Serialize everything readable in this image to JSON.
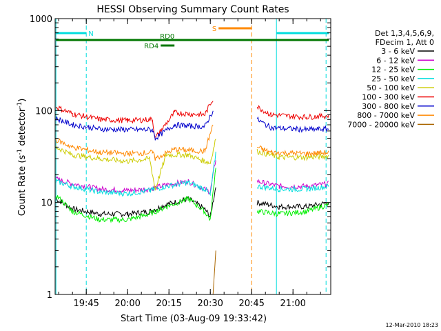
{
  "chart_data": {
    "type": "line",
    "title": "HESSI Observing Summary Count Rates",
    "xlabel": "Start Time (03-Aug-09 19:33:42)",
    "ylabel_main": "Count Rate (s",
    "ylabel_sup1": "-1",
    "ylabel_mid": " detector",
    "ylabel_sup2": "-1",
    "ylabel_end": ")",
    "y_scale": "log",
    "ylim": [
      1,
      1000
    ],
    "xlim": [
      "19:33:42",
      "21:13:42"
    ],
    "x_ticks": [
      "19:45",
      "20:00",
      "20:15",
      "20:30",
      "20:45",
      "21:00"
    ],
    "y_ticks": [
      "1",
      "10",
      "100",
      "1000"
    ],
    "legend_title": [
      "Det 1,3,4,5,6,9,",
      "FDecim 1, Att 0"
    ],
    "legend_placement": "right",
    "series": [
      {
        "name": "3 - 6 keV",
        "color": "#000000",
        "points": [
          [
            "19:34",
            11
          ],
          [
            "19:40",
            8.5
          ],
          [
            "19:50",
            7.5
          ],
          [
            "20:00",
            7.5
          ],
          [
            "20:08",
            8
          ],
          [
            "20:14",
            9.5
          ],
          [
            "20:22",
            11
          ],
          [
            "20:28",
            8.5
          ],
          [
            "20:30",
            7
          ],
          [
            "20:32",
            15
          ],
          [
            "20:42",
            0
          ],
          [
            "20:47",
            10
          ],
          [
            "20:55",
            9
          ],
          [
            "21:05",
            9
          ],
          [
            "21:13",
            10
          ]
        ]
      },
      {
        "name": "6 - 12 keV",
        "color": "#cc00cc",
        "points": [
          [
            "19:34",
            18
          ],
          [
            "19:40",
            16
          ],
          [
            "19:50",
            14
          ],
          [
            "20:00",
            13.5
          ],
          [
            "20:08",
            14
          ],
          [
            "20:14",
            15.5
          ],
          [
            "20:22",
            17
          ],
          [
            "20:28",
            14
          ],
          [
            "20:30",
            13
          ],
          [
            "20:32",
            30
          ],
          [
            "20:42",
            0
          ],
          [
            "20:47",
            17
          ],
          [
            "20:55",
            15
          ],
          [
            "21:05",
            15
          ],
          [
            "21:13",
            16
          ]
        ]
      },
      {
        "name": "12 - 25 keV",
        "color": "#00ee00",
        "points": [
          [
            "19:34",
            12
          ],
          [
            "19:40",
            8
          ],
          [
            "19:50",
            6.5
          ],
          [
            "20:00",
            6.5
          ],
          [
            "20:08",
            7.5
          ],
          [
            "20:14",
            9
          ],
          [
            "20:22",
            11
          ],
          [
            "20:28",
            8
          ],
          [
            "20:30",
            6.5
          ],
          [
            "20:32",
            25
          ],
          [
            "20:42",
            0
          ],
          [
            "20:47",
            8
          ],
          [
            "20:55",
            7.5
          ],
          [
            "21:05",
            8
          ],
          [
            "21:13",
            9.5
          ]
        ]
      },
      {
        "name": "25 - 50 keV",
        "color": "#00dddd",
        "points": [
          [
            "19:34",
            17
          ],
          [
            "19:40",
            15
          ],
          [
            "19:50",
            13
          ],
          [
            "20:00",
            12.5
          ],
          [
            "20:08",
            13.5
          ],
          [
            "20:14",
            15
          ],
          [
            "20:22",
            16.5
          ],
          [
            "20:28",
            14
          ],
          [
            "20:30",
            12
          ],
          [
            "20:32",
            35
          ],
          [
            "20:42",
            0
          ],
          [
            "20:47",
            15
          ],
          [
            "20:55",
            14
          ],
          [
            "21:05",
            14
          ],
          [
            "21:13",
            15
          ]
        ]
      },
      {
        "name": "50 - 100 keV",
        "color": "#cccc00",
        "points": [
          [
            "19:34",
            40
          ],
          [
            "19:40",
            33
          ],
          [
            "19:50",
            30
          ],
          [
            "20:00",
            28
          ],
          [
            "20:08",
            30
          ],
          [
            "20:10",
            14
          ],
          [
            "20:14",
            33
          ],
          [
            "20:22",
            33
          ],
          [
            "20:28",
            28
          ],
          [
            "20:30",
            27
          ],
          [
            "20:32",
            50
          ],
          [
            "20:42",
            0
          ],
          [
            "20:47",
            36
          ],
          [
            "20:55",
            31
          ],
          [
            "21:05",
            31
          ],
          [
            "21:13",
            32
          ]
        ]
      },
      {
        "name": "100 - 300 keV",
        "color": "#ee0000",
        "points": [
          [
            "19:34",
            110
          ],
          [
            "19:40",
            92
          ],
          [
            "19:50",
            80
          ],
          [
            "20:00",
            78
          ],
          [
            "20:09",
            80
          ],
          [
            "20:10",
            50
          ],
          [
            "20:17",
            95
          ],
          [
            "20:22",
            92
          ],
          [
            "20:28",
            90
          ],
          [
            "20:31",
            135
          ],
          [
            "20:42",
            0
          ],
          [
            "20:47",
            110
          ],
          [
            "20:52",
            90
          ],
          [
            "21:05",
            85
          ],
          [
            "21:13",
            88
          ]
        ]
      },
      {
        "name": "300 - 800 keV",
        "color": "#0000cc",
        "points": [
          [
            "19:34",
            82
          ],
          [
            "19:40",
            70
          ],
          [
            "19:50",
            63
          ],
          [
            "20:00",
            62
          ],
          [
            "20:09",
            62
          ],
          [
            "20:10",
            50
          ],
          [
            "20:17",
            70
          ],
          [
            "20:22",
            68
          ],
          [
            "20:28",
            67
          ],
          [
            "20:31",
            100
          ],
          [
            "20:42",
            0
          ],
          [
            "20:47",
            80
          ],
          [
            "20:52",
            65
          ],
          [
            "21:05",
            62
          ],
          [
            "21:13",
            63
          ]
        ]
      },
      {
        "name": "800 - 7000 keV",
        "color": "#ff8800",
        "points": [
          [
            "19:34",
            48
          ],
          [
            "19:40",
            40
          ],
          [
            "19:50",
            35
          ],
          [
            "20:00",
            34
          ],
          [
            "20:09",
            35
          ],
          [
            "20:10",
            30
          ],
          [
            "20:17",
            38
          ],
          [
            "20:22",
            37
          ],
          [
            "20:28",
            36
          ],
          [
            "20:31",
            70
          ],
          [
            "20:42",
            0
          ],
          [
            "20:47",
            40
          ],
          [
            "20:52",
            35
          ],
          [
            "21:05",
            34
          ],
          [
            "21:13",
            35
          ]
        ]
      },
      {
        "name": "7000 - 20000 keV",
        "color": "#aa6600",
        "points": [
          [
            "20:31",
            1
          ],
          [
            "20:32",
            3
          ]
        ]
      }
    ],
    "annotations": [
      {
        "label": "N",
        "color": "#00dddd",
        "from": "19:34",
        "to": "19:45"
      },
      {
        "label": "N",
        "color": "#00dddd",
        "from": "20:54",
        "to": "21:13"
      },
      {
        "label": "S",
        "color": "#ff8800",
        "from": "20:33",
        "to": "20:45"
      },
      {
        "label": "RD0",
        "color": "#007700",
        "from": "19:34",
        "to": "21:13"
      },
      {
        "label": "RD4",
        "color": "#007700",
        "from": "20:12",
        "to": "20:17"
      }
    ],
    "vertical_markers": [
      {
        "time": "19:34",
        "color": "#00dddd",
        "style": "solid"
      },
      {
        "time": "19:45",
        "color": "#00dddd",
        "style": "dashed"
      },
      {
        "time": "20:45",
        "color": "#ff8800",
        "style": "dashed"
      },
      {
        "time": "20:54",
        "color": "#00dddd",
        "style": "solid"
      },
      {
        "time": "21:12",
        "color": "#00dddd",
        "style": "dashed"
      }
    ],
    "grid": false,
    "footer": "12-Mar-2010 18:23"
  }
}
